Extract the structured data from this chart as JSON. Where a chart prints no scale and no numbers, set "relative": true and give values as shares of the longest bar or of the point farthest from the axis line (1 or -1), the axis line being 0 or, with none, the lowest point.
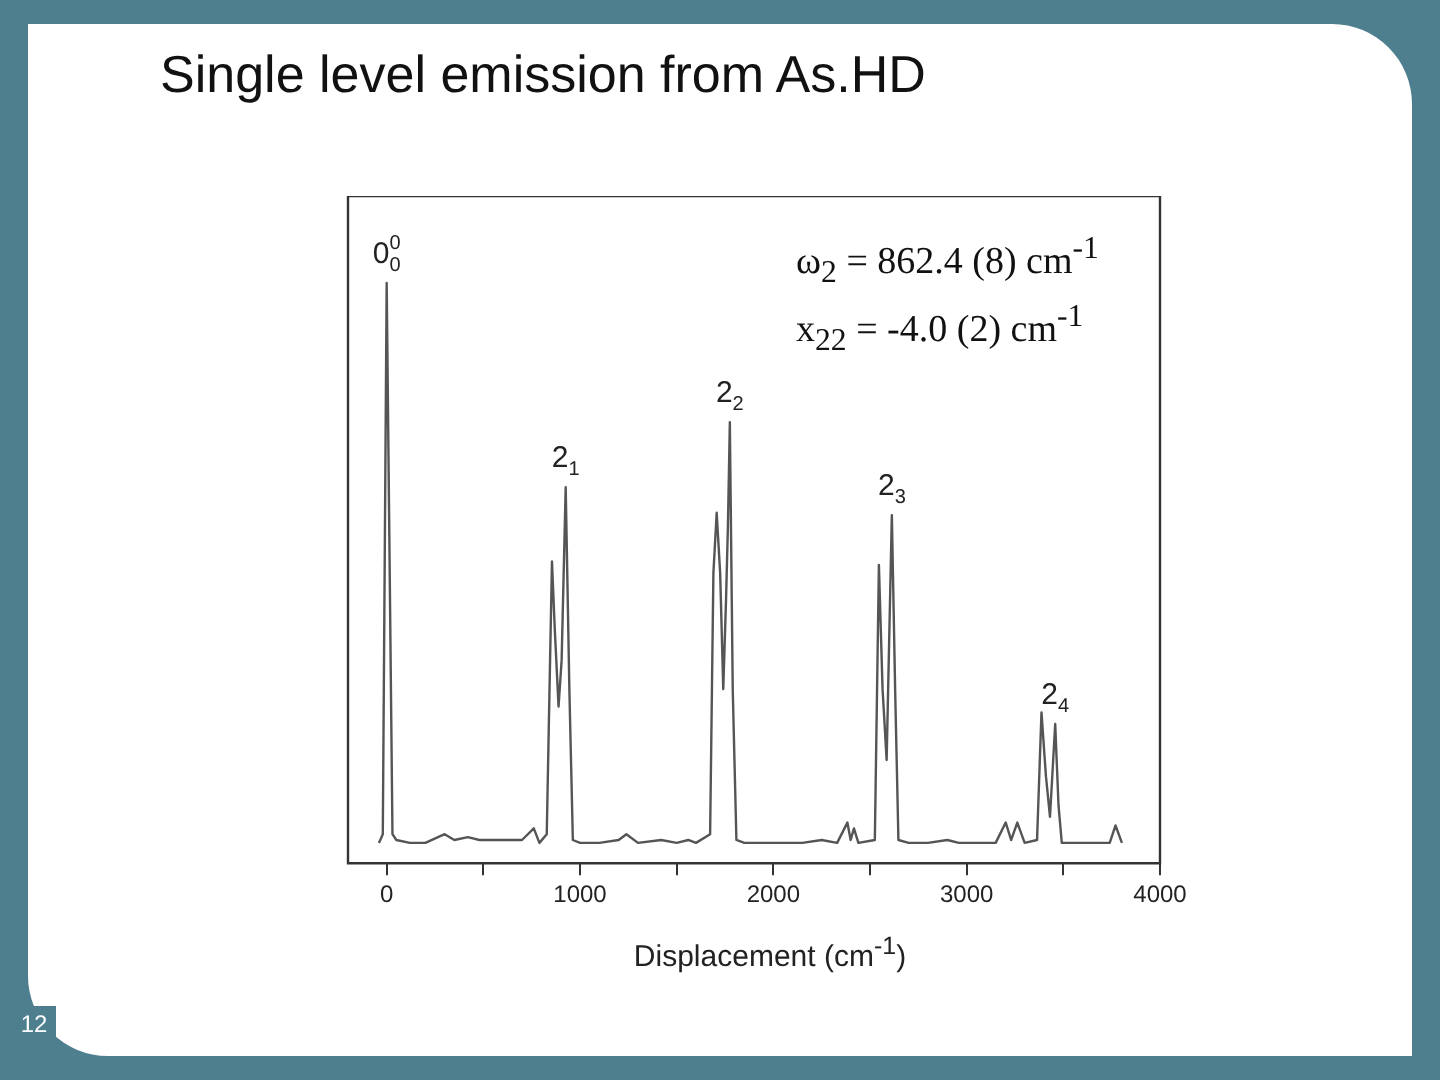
{
  "chart_data": {
    "type": "line",
    "relative": true,
    "title": "Single level emission from As.HD",
    "xlabel": "Displacement (cm$^{-1}$)",
    "xlim": [
      -200,
      4000
    ],
    "xticks": [
      0,
      {
        "value": 500,
        "label": null
      },
      1000,
      {
        "value": 1500,
        "label": null
      },
      2000,
      {
        "value": 2500,
        "label": null
      },
      3000,
      {
        "value": 3500,
        "label": null
      },
      4000
    ],
    "grid": false,
    "legend": false,
    "marker": "none",
    "line_style": "solid",
    "tick_labels": "x",
    "series": [
      {
        "color": "#555555",
        "x": [
          -40,
          -20,
          0,
          30,
          50,
          120,
          200,
          300,
          350,
          420,
          480,
          560,
          640,
          700,
          761,
          790,
          828,
          855,
          870,
          889,
          905,
          926,
          945,
          963,
          1000,
          1100,
          1200,
          1240,
          1300,
          1420,
          1500,
          1560,
          1600,
          1673,
          1690,
          1707,
          1725,
          1741,
          1755,
          1765,
          1775,
          1790,
          1809,
          1850,
          1950,
          2050,
          2150,
          2250,
          2330,
          2383,
          2400,
          2417,
          2440,
          2525,
          2546,
          2565,
          2586,
          2613,
          2630,
          2647,
          2700,
          2800,
          2900,
          2960,
          3050,
          3150,
          3202,
          3230,
          3262,
          3300,
          3364,
          3387,
          3410,
          3431,
          3458,
          3475,
          3492,
          3550,
          3650,
          3740,
          3770,
          3803
        ],
        "values": [
          0.035,
          0.05,
          1.0,
          0.05,
          0.04,
          0.035,
          0.035,
          0.05,
          0.04,
          0.045,
          0.04,
          0.04,
          0.04,
          0.04,
          0.06,
          0.035,
          0.05,
          0.52,
          0.4,
          0.27,
          0.35,
          0.648,
          0.3,
          0.04,
          0.035,
          0.035,
          0.04,
          0.05,
          0.035,
          0.04,
          0.035,
          0.04,
          0.035,
          0.05,
          0.5,
          0.604,
          0.5,
          0.3,
          0.45,
          0.58,
          0.76,
          0.3,
          0.04,
          0.035,
          0.035,
          0.035,
          0.035,
          0.04,
          0.035,
          0.07,
          0.04,
          0.06,
          0.035,
          0.04,
          0.514,
          0.3,
          0.178,
          0.6,
          0.3,
          0.04,
          0.035,
          0.035,
          0.04,
          0.035,
          0.035,
          0.035,
          0.07,
          0.04,
          0.07,
          0.035,
          0.04,
          0.26,
          0.15,
          0.08,
          0.24,
          0.1,
          0.035,
          0.035,
          0.035,
          0.035,
          0.065,
          0.035
        ]
      }
    ],
    "annotations": [
      {
        "text": "0$^{0}$$_{0}$",
        "x": 0,
        "y": 1.0
      },
      {
        "text": "2$_{1}$",
        "x": 926,
        "y": 0.648
      },
      {
        "text": "2$_{2}$",
        "x": 1775,
        "y": 0.76
      },
      {
        "text": "2$_{3}$",
        "x": 2613,
        "y": 0.6
      },
      {
        "text": "2$_{4}$",
        "x": 3458,
        "y": 0.24
      },
      "ω$_{2}$ = 862.4 (8) cm$^{-1}$",
      "x$_{22}$ = -4.0 (2) cm$^{-1}$",
      "12"
    ]
  }
}
